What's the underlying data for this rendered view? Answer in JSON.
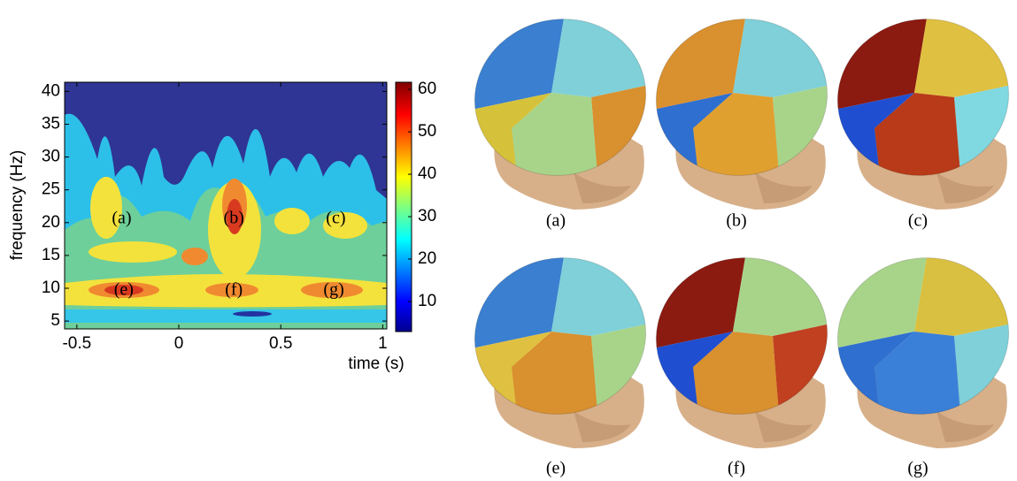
{
  "chart_data": {
    "type": "contour",
    "xlabel": "time (s)",
    "ylabel": "frequency (Hz)",
    "xlim": [
      -0.56,
      1.02
    ],
    "xticks": [
      -0.5,
      0,
      0.5,
      1
    ],
    "ylim": [
      3.8,
      41.4
    ],
    "yticks": [
      5,
      10,
      15,
      20,
      25,
      30,
      35,
      40
    ],
    "clim": [
      2.9,
      61.7
    ],
    "cticks": [
      10,
      20,
      30,
      40,
      50,
      60
    ],
    "annotations": [
      {
        "text": "(a)",
        "x": -0.28,
        "y": 20.5
      },
      {
        "text": "(b)",
        "x": 0.27,
        "y": 20.5
      },
      {
        "text": "(c)",
        "x": 0.77,
        "y": 20.5
      },
      {
        "text": "(e)",
        "x": -0.27,
        "y": 9.6
      },
      {
        "text": "(f)",
        "x": 0.27,
        "y": 9.6
      },
      {
        "text": "(g)",
        "x": 0.76,
        "y": 9.6
      }
    ]
  },
  "panels": [
    {
      "caption": "(a)"
    },
    {
      "caption": "(b)"
    },
    {
      "caption": "(c)"
    },
    {
      "caption": "(e)"
    },
    {
      "caption": "(f)"
    },
    {
      "caption": "(g)"
    }
  ]
}
